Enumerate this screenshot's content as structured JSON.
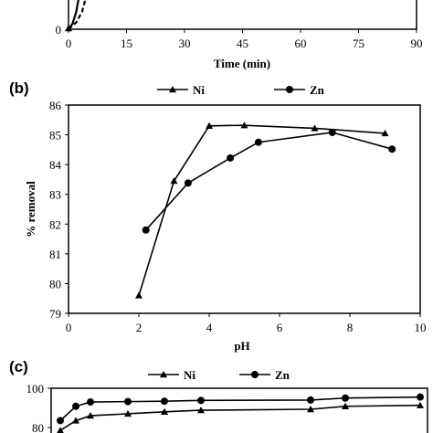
{
  "chart_data": [
    {
      "panel": "(a)",
      "type": "line",
      "xlabel": "Time (min)",
      "xticks": [
        "0",
        "15",
        "30",
        "45",
        "60",
        "75",
        "90"
      ],
      "xlim": [
        0,
        90
      ],
      "yticks_visible": [
        "0"
      ],
      "series": [
        {
          "values": [
            [
              0,
              0
            ],
            [
              1,
              6
            ],
            [
              2,
              20
            ],
            [
              3,
              45
            ]
          ],
          "style": "solid"
        },
        {
          "values": [
            [
              0,
              0
            ],
            [
              2,
              8
            ],
            [
              3.5,
              20
            ],
            [
              5,
              45
            ]
          ],
          "style": "dashed"
        }
      ]
    },
    {
      "panel": "(b)",
      "type": "line",
      "xlabel": "pH",
      "ylabel": "% removal",
      "xlim": [
        0,
        10
      ],
      "ylim": [
        79,
        86
      ],
      "xticks": [
        "0",
        "2",
        "4",
        "6",
        "8",
        "10"
      ],
      "yticks": [
        "79",
        "80",
        "81",
        "82",
        "83",
        "84",
        "85",
        "86"
      ],
      "legend": "top-center",
      "series": [
        {
          "name": "Ni",
          "marker": "triangle",
          "x": [
            2.0,
            3.0,
            4.0,
            5.0,
            7.0,
            9.0
          ],
          "y": [
            79.6,
            83.45,
            85.3,
            85.32,
            85.22,
            85.05
          ]
        },
        {
          "name": "Zn",
          "marker": "circle",
          "x": [
            2.2,
            3.4,
            4.6,
            5.4,
            7.5,
            9.2
          ],
          "y": [
            81.8,
            83.38,
            84.22,
            84.75,
            85.08,
            84.52
          ]
        }
      ]
    },
    {
      "panel": "(c)",
      "type": "line",
      "ylim": [
        80,
        100
      ],
      "yticks_visible": [
        "100",
        "80"
      ],
      "legend": "top-center",
      "series": [
        {
          "name": "Ni",
          "marker": "triangle",
          "y": [
            78.5,
            83.5,
            86.0,
            87.0,
            88.0,
            88.8,
            89.3,
            90.8,
            91.3
          ]
        },
        {
          "name": "Zn",
          "marker": "circle",
          "y": [
            83.5,
            90.8,
            93.0,
            93.2,
            93.4,
            93.8,
            94.0,
            95.0,
            95.5
          ]
        }
      ]
    }
  ]
}
